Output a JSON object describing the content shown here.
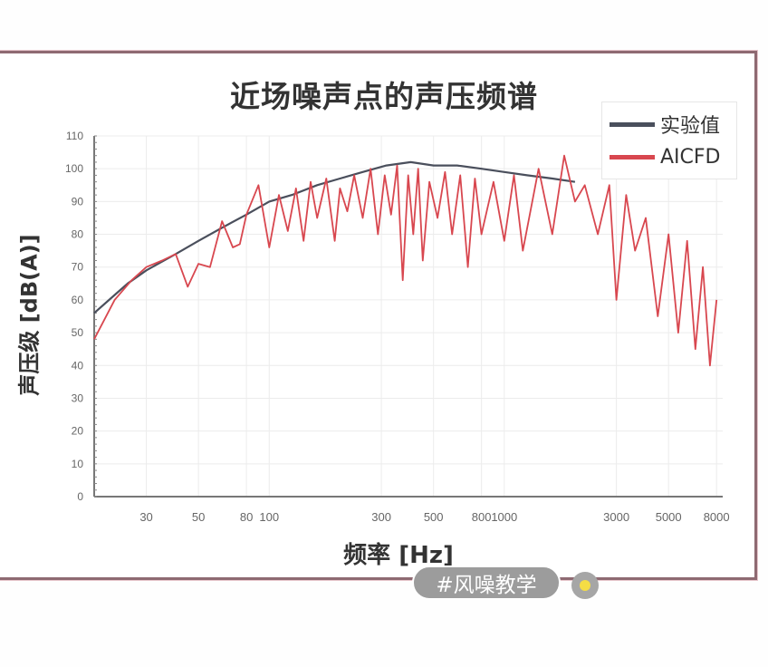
{
  "chart_data": {
    "type": "line",
    "title": "近场噪声点的声压频谱",
    "xlabel": "频率 [Hz]",
    "ylabel": "声压级 [dB(A)]",
    "x_scale": "log",
    "xlim": [
      18,
      8500
    ],
    "ylim": [
      0,
      110
    ],
    "x_ticks": [
      30,
      50,
      80,
      100,
      300,
      500,
      800,
      1000,
      3000,
      5000,
      8000
    ],
    "y_ticks": [
      0,
      10,
      20,
      30,
      40,
      50,
      60,
      70,
      80,
      90,
      100,
      110
    ],
    "grid": true,
    "legend_position": "upper right",
    "series": [
      {
        "name": "实验值",
        "color": "#4a4f5c",
        "x": [
          18,
          25,
          30,
          40,
          50,
          63,
          80,
          100,
          125,
          160,
          200,
          250,
          315,
          400,
          500,
          630,
          800,
          1000,
          1250,
          1600,
          2000
        ],
        "values": [
          56,
          65,
          69,
          74,
          78,
          82,
          86,
          90,
          92,
          95,
          97,
          99,
          101,
          102,
          101,
          101,
          100,
          99,
          98,
          97,
          96
        ]
      },
      {
        "name": "AICFD",
        "color": "#d8474f",
        "x": [
          18,
          22,
          26,
          30,
          35,
          40,
          45,
          50,
          56,
          63,
          70,
          75,
          80,
          90,
          100,
          110,
          120,
          130,
          140,
          150,
          160,
          175,
          190,
          200,
          215,
          230,
          250,
          270,
          290,
          310,
          330,
          350,
          370,
          390,
          410,
          430,
          450,
          480,
          520,
          560,
          600,
          650,
          700,
          750,
          800,
          900,
          1000,
          1100,
          1200,
          1400,
          1600,
          1800,
          2000,
          2200,
          2500,
          2800,
          3000,
          3300,
          3600,
          4000,
          4500,
          5000,
          5500,
          6000,
          6500,
          7000,
          7500,
          8000
        ],
        "values": [
          48,
          60,
          66,
          70,
          72,
          74,
          64,
          71,
          70,
          84,
          76,
          77,
          86,
          95,
          76,
          92,
          81,
          94,
          78,
          96,
          85,
          97,
          78,
          94,
          87,
          98,
          85,
          100,
          80,
          98,
          86,
          101,
          66,
          98,
          80,
          100,
          72,
          96,
          85,
          99,
          80,
          98,
          70,
          97,
          80,
          96,
          78,
          98,
          75,
          100,
          80,
          104,
          90,
          95,
          80,
          95,
          60,
          92,
          75,
          85,
          55,
          80,
          50,
          78,
          45,
          70,
          40,
          60
        ]
      }
    ]
  },
  "page": {
    "hashtag": "#风噪教学"
  }
}
